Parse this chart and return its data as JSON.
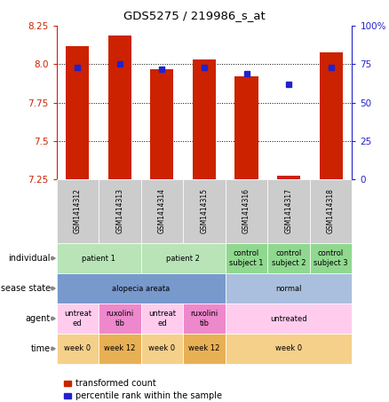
{
  "title": "GDS5275 / 219986_s_at",
  "samples": [
    "GSM1414312",
    "GSM1414313",
    "GSM1414314",
    "GSM1414315",
    "GSM1414316",
    "GSM1414317",
    "GSM1414318"
  ],
  "transformed_counts": [
    8.12,
    8.19,
    7.97,
    8.03,
    7.92,
    7.27,
    8.08
  ],
  "percentile_ranks": [
    73,
    75,
    72,
    73,
    69,
    62,
    73
  ],
  "ylim_left": [
    7.25,
    8.25
  ],
  "ylim_right": [
    0,
    100
  ],
  "yticks_left": [
    7.25,
    7.5,
    7.75,
    8.0,
    8.25
  ],
  "yticks_right": [
    0,
    25,
    50,
    75,
    100
  ],
  "ytick_labels_right": [
    "0",
    "25",
    "50",
    "75",
    "100%"
  ],
  "bar_color": "#cc2200",
  "dot_color": "#2222cc",
  "bg_color": "#ffffff",
  "annotation_rows": [
    {
      "label": "individual",
      "cells": [
        {
          "text": "patient 1",
          "span": 2,
          "color": "#b8e4b8"
        },
        {
          "text": "patient 2",
          "span": 2,
          "color": "#b8e4b8"
        },
        {
          "text": "control\nsubject 1",
          "span": 1,
          "color": "#90d890"
        },
        {
          "text": "control\nsubject 2",
          "span": 1,
          "color": "#90d890"
        },
        {
          "text": "control\nsubject 3",
          "span": 1,
          "color": "#90d890"
        }
      ]
    },
    {
      "label": "disease state",
      "cells": [
        {
          "text": "alopecia areata",
          "span": 4,
          "color": "#7799cc"
        },
        {
          "text": "normal",
          "span": 3,
          "color": "#aabfdd"
        }
      ]
    },
    {
      "label": "agent",
      "cells": [
        {
          "text": "untreat\ned",
          "span": 1,
          "color": "#ffccee"
        },
        {
          "text": "ruxolini\ntib",
          "span": 1,
          "color": "#ee88cc"
        },
        {
          "text": "untreat\ned",
          "span": 1,
          "color": "#ffccee"
        },
        {
          "text": "ruxolini\ntib",
          "span": 1,
          "color": "#ee88cc"
        },
        {
          "text": "untreated",
          "span": 3,
          "color": "#ffccee"
        }
      ]
    },
    {
      "label": "time",
      "cells": [
        {
          "text": "week 0",
          "span": 1,
          "color": "#f5d08a"
        },
        {
          "text": "week 12",
          "span": 1,
          "color": "#e8b055"
        },
        {
          "text": "week 0",
          "span": 1,
          "color": "#f5d08a"
        },
        {
          "text": "week 12",
          "span": 1,
          "color": "#e8b055"
        },
        {
          "text": "week 0",
          "span": 3,
          "color": "#f5d08a"
        }
      ]
    }
  ],
  "legend_items": [
    {
      "color": "#cc2200",
      "label": "transformed count"
    },
    {
      "color": "#2222cc",
      "label": "percentile rank within the sample"
    }
  ],
  "gsm_bg": "#cccccc",
  "gsm_border": "#aaaaaa"
}
